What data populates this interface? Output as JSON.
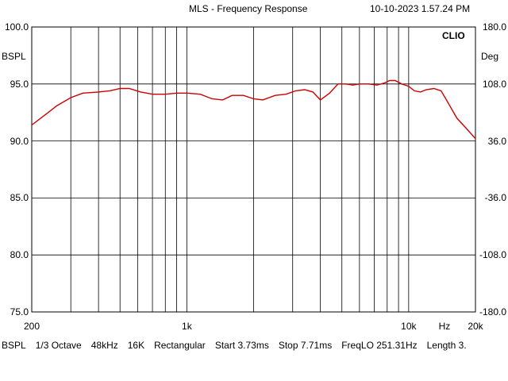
{
  "header": {
    "title": "MLS - Frequency Response",
    "timestamp": "10-10-2023 1.57.24 PM",
    "brand": "CLIO"
  },
  "footer": {
    "items": [
      "BSPL",
      "1/3 Octave",
      "48kHz",
      "16K",
      "Rectangular",
      "Start 3.73ms",
      "Stop 7.71ms",
      "FreqLO 251.31Hz",
      "Length 3."
    ]
  },
  "colors": {
    "trace": "#cc0000",
    "grid": "#000000"
  },
  "chart_data": {
    "type": "line",
    "title": "MLS - Frequency Response",
    "ylabel": "BSPL",
    "y2label": "Deg",
    "xscale": "log",
    "xlim": [
      200,
      20000
    ],
    "ylim": [
      75,
      100
    ],
    "y2lim": [
      -180,
      180
    ],
    "x_tick_labels": [
      {
        "value": 200,
        "label": "200"
      },
      {
        "value": 1000,
        "label": "1k"
      },
      {
        "value": 10000,
        "label": "10k"
      },
      {
        "value": 14500,
        "label": "Hz"
      },
      {
        "value": 20000,
        "label": "20k"
      }
    ],
    "y_tick_labels": [
      "100.0",
      "95.0",
      "90.0",
      "85.0",
      "80.0",
      "75.0"
    ],
    "y2_tick_labels": [
      "180.0",
      "108.0",
      "36.0",
      "-36.0",
      "-108.0",
      "-180.0"
    ],
    "grid": true,
    "series": [
      {
        "x": [
          200,
          230,
          260,
          300,
          340,
          400,
          450,
          500,
          550,
          620,
          700,
          800,
          900,
          1000,
          1150,
          1300,
          1450,
          1600,
          1800,
          2000,
          2200,
          2500,
          2800,
          3100,
          3400,
          3700,
          4000,
          4400,
          4800,
          5200,
          5600,
          6000,
          6600,
          7200,
          7800,
          8200,
          8700,
          9300,
          10000,
          10600,
          11300,
          12000,
          13000,
          14000,
          15000,
          16500,
          18000,
          20000
        ],
        "y": [
          91.4,
          92.3,
          93.1,
          93.8,
          94.2,
          94.3,
          94.4,
          94.6,
          94.6,
          94.3,
          94.1,
          94.1,
          94.2,
          94.2,
          94.1,
          93.7,
          93.6,
          94.0,
          94.0,
          93.7,
          93.6,
          94.0,
          94.1,
          94.4,
          94.5,
          94.3,
          93.6,
          94.2,
          95.0,
          95.0,
          94.9,
          95.0,
          95.0,
          94.9,
          95.1,
          95.3,
          95.3,
          95.0,
          94.8,
          94.4,
          94.3,
          94.5,
          94.6,
          94.4,
          93.4,
          92.0,
          91.2,
          90.2
        ]
      }
    ]
  }
}
